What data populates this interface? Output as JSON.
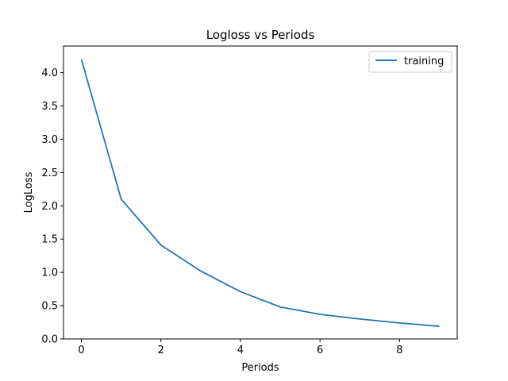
{
  "chart_data": {
    "type": "line",
    "title": "Logloss vs Periods",
    "xlabel": "Periods",
    "ylabel": "LogLoss",
    "xlim": [
      -0.45,
      9.45
    ],
    "ylim": [
      0,
      4.4
    ],
    "xticks": [
      0,
      2,
      4,
      6,
      8
    ],
    "yticks": [
      0.0,
      0.5,
      1.0,
      1.5,
      2.0,
      2.5,
      3.0,
      3.5,
      4.0
    ],
    "xtick_labels": [
      "0",
      "2",
      "4",
      "6",
      "8"
    ],
    "ytick_labels": [
      "0.0",
      "0.5",
      "1.0",
      "1.5",
      "2.0",
      "2.5",
      "3.0",
      "3.5",
      "4.0"
    ],
    "grid": false,
    "legend_position": "top-right",
    "series": [
      {
        "name": "training",
        "color": "#1f77b4",
        "x": [
          0,
          1,
          2,
          3,
          4,
          5,
          6,
          7,
          8,
          9
        ],
        "y": [
          4.2,
          2.1,
          1.41,
          1.02,
          0.71,
          0.48,
          0.37,
          0.3,
          0.24,
          0.19
        ]
      }
    ]
  }
}
